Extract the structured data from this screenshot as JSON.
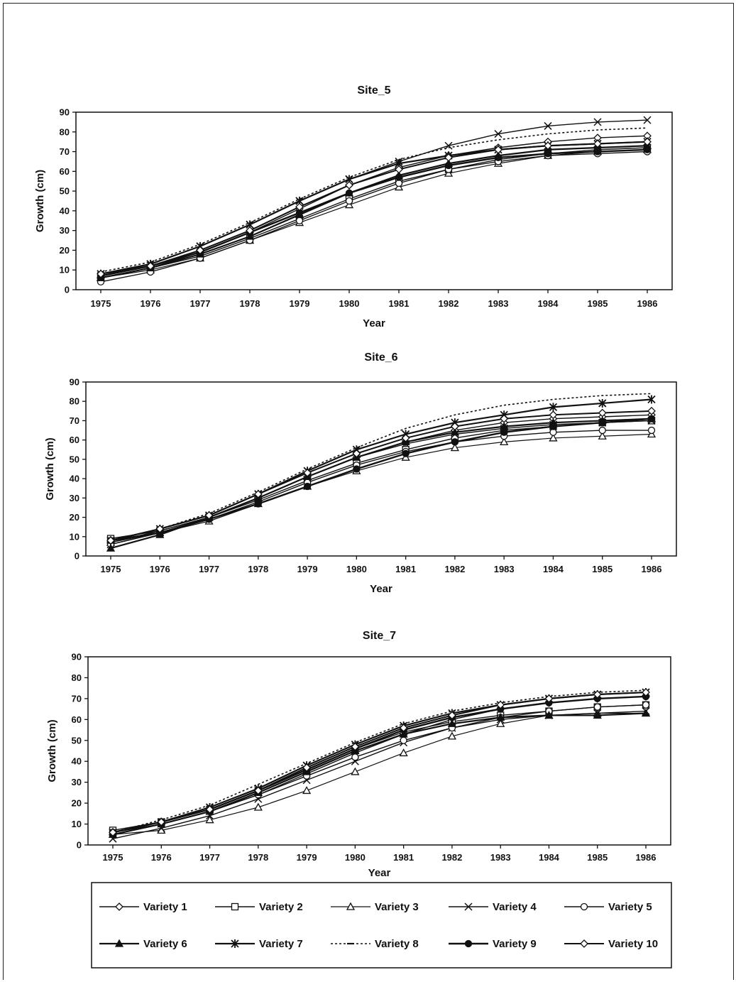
{
  "legend_items": [
    "Variety 1",
    "Variety 2",
    "Variety 3",
    "Variety 4",
    "Variety 5",
    "Variety 6",
    "Variety 7",
    "Variety 8",
    "Variety 9",
    "Variety 10"
  ],
  "chart_data": [
    {
      "type": "line",
      "title": "Site_5",
      "xlabel": "Year",
      "ylabel": "Growth (cm)",
      "x": [
        "1975",
        "1976",
        "1977",
        "1978",
        "1979",
        "1980",
        "1981",
        "1982",
        "1983",
        "1984",
        "1985",
        "1986"
      ],
      "ylim": [
        0,
        90
      ],
      "yticks": [
        0,
        10,
        20,
        30,
        40,
        50,
        60,
        70,
        80,
        90
      ],
      "grid": false,
      "series": [
        {
          "name": "Variety 1",
          "values": [
            6,
            11,
            19,
            29,
            41,
            53,
            62,
            68,
            72,
            75,
            77,
            78
          ]
        },
        {
          "name": "Variety 2",
          "values": [
            6,
            11,
            17,
            26,
            36,
            46,
            55,
            61,
            66,
            69,
            71,
            72
          ]
        },
        {
          "name": "Variety 3",
          "values": [
            6,
            10,
            16,
            25,
            34,
            43,
            52,
            59,
            64,
            68,
            70,
            71
          ]
        },
        {
          "name": "Variety 4",
          "values": [
            7,
            13,
            22,
            33,
            45,
            56,
            65,
            73,
            79,
            83,
            85,
            86
          ]
        },
        {
          "name": "Variety 5",
          "values": [
            4,
            9,
            16,
            25,
            35,
            45,
            54,
            61,
            65,
            68,
            69,
            70
          ]
        },
        {
          "name": "Variety 6",
          "values": [
            6,
            11,
            18,
            27,
            38,
            49,
            58,
            64,
            68,
            71,
            72,
            73
          ]
        },
        {
          "name": "Variety 7",
          "values": [
            8,
            13,
            22,
            33,
            45,
            56,
            64,
            68,
            71,
            73,
            74,
            75
          ]
        },
        {
          "name": "Variety 8",
          "values": [
            9,
            14,
            23,
            34,
            46,
            57,
            66,
            72,
            76,
            79,
            81,
            82
          ]
        },
        {
          "name": "Variety 9",
          "values": [
            7,
            12,
            19,
            29,
            39,
            49,
            57,
            63,
            67,
            69,
            70,
            71
          ]
        },
        {
          "name": "Variety 10",
          "values": [
            8,
            12,
            20,
            30,
            42,
            53,
            61,
            67,
            71,
            73,
            74,
            75
          ]
        }
      ]
    },
    {
      "type": "line",
      "title": "Site_6",
      "xlabel": "Year",
      "ylabel": "Growth (cm)",
      "x": [
        "1975",
        "1976",
        "1977",
        "1978",
        "1979",
        "1980",
        "1981",
        "1982",
        "1983",
        "1984",
        "1985",
        "1986"
      ],
      "ylim": [
        0,
        90
      ],
      "yticks": [
        0,
        10,
        20,
        30,
        40,
        50,
        60,
        70,
        80,
        90
      ],
      "grid": false,
      "series": [
        {
          "name": "Variety 1",
          "values": [
            7,
            13,
            20,
            30,
            41,
            51,
            59,
            65,
            69,
            71,
            72,
            73
          ]
        },
        {
          "name": "Variety 2",
          "values": [
            9,
            13,
            20,
            29,
            39,
            48,
            55,
            61,
            65,
            67,
            69,
            70
          ]
        },
        {
          "name": "Variety 3",
          "values": [
            7,
            12,
            18,
            27,
            36,
            44,
            51,
            56,
            59,
            61,
            62,
            63
          ]
        },
        {
          "name": "Variety 4",
          "values": [
            6,
            12,
            20,
            30,
            41,
            51,
            58,
            63,
            66,
            68,
            69,
            70
          ]
        },
        {
          "name": "Variety 5",
          "values": [
            6,
            12,
            19,
            28,
            38,
            47,
            54,
            59,
            62,
            64,
            65,
            65
          ]
        },
        {
          "name": "Variety 6",
          "values": [
            4,
            11,
            20,
            30,
            41,
            51,
            59,
            64,
            67,
            69,
            70,
            71
          ]
        },
        {
          "name": "Variety 7",
          "values": [
            8,
            14,
            21,
            32,
            44,
            55,
            63,
            69,
            73,
            77,
            79,
            81
          ]
        },
        {
          "name": "Variety 8",
          "values": [
            8,
            14,
            22,
            33,
            45,
            56,
            66,
            73,
            78,
            81,
            83,
            84
          ]
        },
        {
          "name": "Variety 9",
          "values": [
            8,
            12,
            19,
            27,
            36,
            45,
            53,
            59,
            64,
            67,
            69,
            71
          ]
        },
        {
          "name": "Variety 10",
          "values": [
            8,
            14,
            21,
            32,
            43,
            53,
            61,
            67,
            71,
            73,
            74,
            75
          ]
        }
      ]
    },
    {
      "type": "line",
      "title": "Site_7",
      "xlabel": "Year",
      "ylabel": "Growth (cm)",
      "x": [
        "1975",
        "1976",
        "1977",
        "1978",
        "1979",
        "1980",
        "1981",
        "1982",
        "1983",
        "1984",
        "1985",
        "1986"
      ],
      "ylim": [
        0,
        90
      ],
      "yticks": [
        0,
        10,
        20,
        30,
        40,
        50,
        60,
        70,
        80,
        90
      ],
      "grid": false,
      "series": [
        {
          "name": "Variety 1",
          "values": [
            5,
            10,
            16,
            24,
            34,
            44,
            53,
            60,
            65,
            68,
            70,
            71
          ]
        },
        {
          "name": "Variety 2",
          "values": [
            7,
            11,
            17,
            26,
            36,
            46,
            54,
            59,
            62,
            64,
            66,
            67
          ]
        },
        {
          "name": "Variety 3",
          "values": [
            5,
            7,
            12,
            18,
            26,
            35,
            44,
            52,
            58,
            62,
            63,
            63
          ]
        },
        {
          "name": "Variety 4",
          "values": [
            3,
            8,
            14,
            22,
            31,
            40,
            49,
            56,
            60,
            62,
            63,
            64
          ]
        },
        {
          "name": "Variety 5",
          "values": [
            6,
            10,
            16,
            24,
            33,
            42,
            50,
            56,
            61,
            64,
            66,
            67
          ]
        },
        {
          "name": "Variety 6",
          "values": [
            5,
            10,
            16,
            25,
            35,
            45,
            53,
            58,
            61,
            62,
            62,
            63
          ]
        },
        {
          "name": "Variety 7",
          "values": [
            6,
            11,
            18,
            27,
            38,
            48,
            57,
            63,
            67,
            70,
            72,
            73
          ]
        },
        {
          "name": "Variety 8",
          "values": [
            6,
            12,
            19,
            29,
            39,
            49,
            58,
            64,
            68,
            71,
            73,
            74
          ]
        },
        {
          "name": "Variety 9",
          "values": [
            6,
            11,
            17,
            26,
            36,
            46,
            55,
            61,
            65,
            68,
            70,
            71
          ]
        },
        {
          "name": "Variety 10",
          "values": [
            6,
            11,
            17,
            26,
            37,
            47,
            56,
            62,
            67,
            70,
            72,
            73
          ]
        }
      ]
    }
  ]
}
